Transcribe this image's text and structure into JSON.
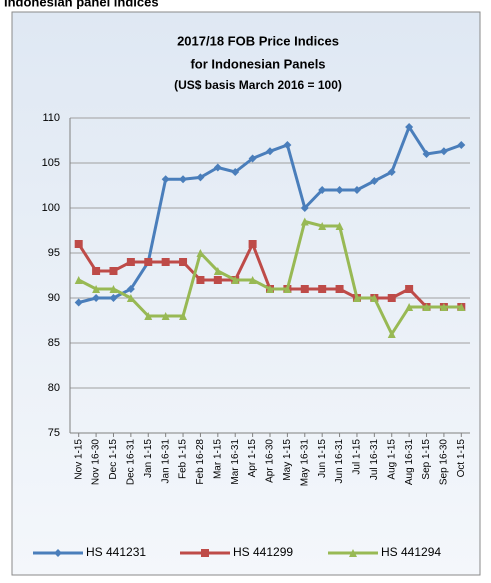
{
  "header": "Indonesian panel indices",
  "chart_data": {
    "type": "line",
    "title": [
      "2017/18 FOB Price Indices",
      "for Indonesian Panels",
      "(US$ basis March 2016 = 100)"
    ],
    "categories": [
      "Nov 1-15",
      "Nov 16-30",
      "Dec 1-15",
      "Dec 16-31",
      "Jan 1-15",
      "Jan 16-31",
      "Feb 1-15",
      "Feb 16-28",
      "Mar 1-15",
      "Mar 16-31",
      "Apr 1-15",
      "Apr 16-30",
      "May 1-15",
      "May 16-31",
      "Jun 1-15",
      "Jun 16-31",
      "Jul 1-15",
      "Jul 16-31",
      "Aug 1-15",
      "Aug 16-31",
      "Sep 1-15",
      "Sep 16-30",
      "Oct 1-15"
    ],
    "series": [
      {
        "name": "HS 441231",
        "color": "#4a7ebb",
        "marker": "diamond",
        "values": [
          89.5,
          90,
          90,
          91,
          94,
          103.2,
          103.2,
          103.4,
          104.5,
          104,
          105.5,
          106.3,
          107,
          100,
          102,
          102,
          102,
          103,
          104,
          109,
          106,
          106.3,
          107
        ]
      },
      {
        "name": "HS 441299",
        "color": "#be4b48",
        "marker": "square",
        "values": [
          96,
          93,
          93,
          94,
          94,
          94,
          94,
          92,
          92,
          92,
          96,
          91,
          91,
          91,
          91,
          91,
          90,
          90,
          90,
          91,
          89,
          89,
          89
        ]
      },
      {
        "name": "HS 441294",
        "color": "#98b954",
        "marker": "triangle",
        "values": [
          92,
          91,
          91,
          90,
          88,
          88,
          88,
          95,
          93,
          92,
          92,
          91,
          91,
          98.5,
          98,
          98,
          90,
          90,
          86,
          89,
          89,
          89,
          89
        ]
      }
    ],
    "ylim": [
      75,
      110
    ],
    "yticks": [
      75,
      80,
      85,
      90,
      95,
      100,
      105,
      110
    ],
    "grid": true,
    "legend": "bottom"
  }
}
